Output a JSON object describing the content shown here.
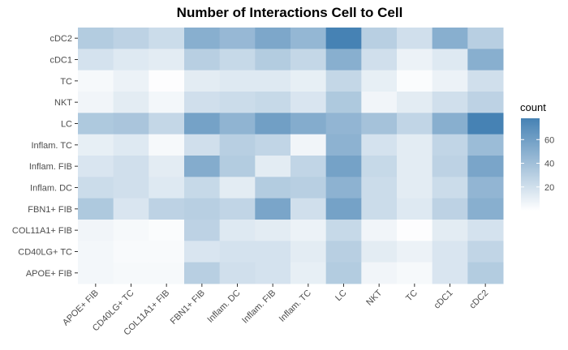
{
  "chart_data": {
    "type": "heatmap",
    "title": "Number of Interactions Cell to Cell",
    "xlabel": "",
    "ylabel": "",
    "x": [
      "APOE+ FIB",
      "CD40LG+ TC",
      "COL11A1+ FIB",
      "FBN1+ FIB",
      "Inflam. DC",
      "Inflam. FIB",
      "Inflam. TC",
      "LC",
      "NKT",
      "TC",
      "cDC1",
      "cDC2"
    ],
    "y": [
      "cDC2",
      "cDC1",
      "TC",
      "NKT",
      "LC",
      "Inflam. TC",
      "Inflam. FIB",
      "Inflam. DC",
      "FBN1+ FIB",
      "COL11A1+ FIB",
      "CD40LG+ TC",
      "APOE+ FIB"
    ],
    "values": [
      [
        32,
        28,
        22,
        50,
        44,
        55,
        45,
        78,
        30,
        20,
        50,
        30
      ],
      [
        18,
        14,
        12,
        30,
        24,
        32,
        25,
        50,
        20,
        8,
        14,
        50
      ],
      [
        4,
        8,
        1,
        12,
        14,
        14,
        10,
        25,
        10,
        2,
        8,
        20
      ],
      [
        6,
        12,
        5,
        20,
        22,
        24,
        16,
        34,
        6,
        12,
        20,
        28
      ],
      [
        34,
        36,
        25,
        58,
        47,
        60,
        52,
        46,
        38,
        26,
        50,
        78
      ],
      [
        10,
        14,
        4,
        20,
        30,
        26,
        6,
        48,
        18,
        12,
        26,
        42
      ],
      [
        16,
        20,
        12,
        52,
        32,
        12,
        26,
        58,
        24,
        12,
        28,
        56
      ],
      [
        22,
        20,
        14,
        24,
        12,
        32,
        30,
        48,
        22,
        12,
        22,
        46
      ],
      [
        34,
        16,
        28,
        30,
        26,
        56,
        20,
        58,
        22,
        14,
        28,
        50
      ],
      [
        6,
        4,
        2,
        28,
        14,
        12,
        8,
        24,
        6,
        1,
        12,
        18
      ],
      [
        5,
        3,
        3,
        16,
        18,
        18,
        12,
        30,
        12,
        8,
        16,
        26
      ],
      [
        5,
        4,
        4,
        30,
        20,
        18,
        10,
        32,
        6,
        4,
        16,
        32
      ]
    ],
    "legend": {
      "title": "count",
      "ticks": [
        20,
        40,
        60
      ],
      "range": [
        0,
        78
      ],
      "placement": "right"
    },
    "colors": {
      "low": "#ffffff",
      "high": "#4682b4",
      "panel_background": "#ebebeb"
    },
    "grid": true
  }
}
